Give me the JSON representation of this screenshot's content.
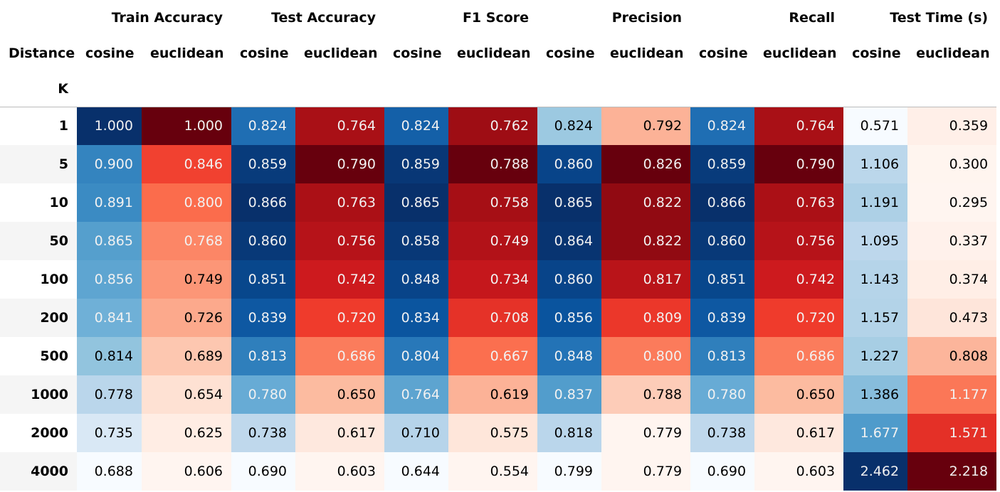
{
  "table": {
    "index_name": "Distance",
    "row_index_name": "K",
    "colormaps": [
      "Blues",
      "Reds"
    ],
    "groups": [
      {
        "name": "Train Accuracy",
        "subcolumns": [
          "cosine",
          "euclidean"
        ]
      },
      {
        "name": "Test Accuracy",
        "subcolumns": [
          "cosine",
          "euclidean"
        ]
      },
      {
        "name": "F1 Score",
        "subcolumns": [
          "cosine",
          "euclidean"
        ]
      },
      {
        "name": "Precision",
        "subcolumns": [
          "cosine",
          "euclidean"
        ]
      },
      {
        "name": "Recall",
        "subcolumns": [
          "cosine",
          "euclidean"
        ]
      },
      {
        "name": "Test Time (s)",
        "subcolumns": [
          "cosine",
          "euclidean"
        ]
      }
    ],
    "rows": [
      {
        "k": 1,
        "cells": [
          "1.000",
          "1.000",
          "0.824",
          "0.764",
          "0.824",
          "0.762",
          "0.824",
          "0.792",
          "0.824",
          "0.764",
          "0.571",
          "0.359"
        ]
      },
      {
        "k": 5,
        "cells": [
          "0.900",
          "0.846",
          "0.859",
          "0.790",
          "0.859",
          "0.788",
          "0.860",
          "0.826",
          "0.859",
          "0.790",
          "1.106",
          "0.300"
        ]
      },
      {
        "k": 10,
        "cells": [
          "0.891",
          "0.800",
          "0.866",
          "0.763",
          "0.865",
          "0.758",
          "0.865",
          "0.822",
          "0.866",
          "0.763",
          "1.191",
          "0.295"
        ]
      },
      {
        "k": 50,
        "cells": [
          "0.865",
          "0.768",
          "0.860",
          "0.756",
          "0.858",
          "0.749",
          "0.864",
          "0.822",
          "0.860",
          "0.756",
          "1.095",
          "0.337"
        ]
      },
      {
        "k": 100,
        "cells": [
          "0.856",
          "0.749",
          "0.851",
          "0.742",
          "0.848",
          "0.734",
          "0.860",
          "0.817",
          "0.851",
          "0.742",
          "1.143",
          "0.374"
        ]
      },
      {
        "k": 200,
        "cells": [
          "0.841",
          "0.726",
          "0.839",
          "0.720",
          "0.834",
          "0.708",
          "0.856",
          "0.809",
          "0.839",
          "0.720",
          "1.157",
          "0.473"
        ]
      },
      {
        "k": 500,
        "cells": [
          "0.814",
          "0.689",
          "0.813",
          "0.686",
          "0.804",
          "0.667",
          "0.848",
          "0.800",
          "0.813",
          "0.686",
          "1.227",
          "0.808"
        ]
      },
      {
        "k": 1000,
        "cells": [
          "0.778",
          "0.654",
          "0.780",
          "0.650",
          "0.764",
          "0.619",
          "0.837",
          "0.788",
          "0.780",
          "0.650",
          "1.386",
          "1.177"
        ]
      },
      {
        "k": 2000,
        "cells": [
          "0.735",
          "0.625",
          "0.738",
          "0.617",
          "0.710",
          "0.575",
          "0.818",
          "0.779",
          "0.738",
          "0.617",
          "1.677",
          "1.571"
        ]
      },
      {
        "k": 4000,
        "cells": [
          "0.688",
          "0.606",
          "0.690",
          "0.603",
          "0.644",
          "0.554",
          "0.799",
          "0.779",
          "0.690",
          "0.603",
          "2.462",
          "2.218"
        ]
      }
    ]
  }
}
